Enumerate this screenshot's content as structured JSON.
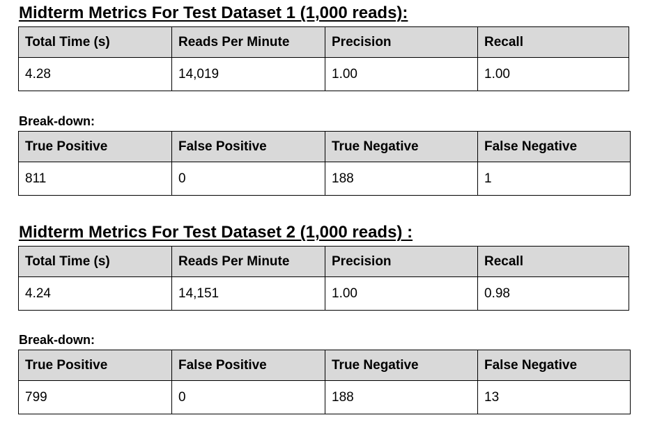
{
  "sections": [
    {
      "title": "Midterm Metrics For Test Dataset 1 (1,000 reads):",
      "metrics": {
        "headers": [
          "Total Time (s)",
          "Reads Per Minute",
          "Precision",
          "Recall"
        ],
        "values": [
          "4.28",
          "14,019",
          "1.00",
          "1.00"
        ]
      },
      "breakdown_label": "Break-down:",
      "breakdown": {
        "headers": [
          "True Positive",
          "False Positive",
          "True Negative",
          "False Negative"
        ],
        "values": [
          "811",
          "0",
          "188",
          "1"
        ]
      }
    },
    {
      "title": "Midterm Metrics For Test Dataset 2 (1,000 reads) :",
      "metrics": {
        "headers": [
          "Total Time (s)",
          "Reads Per Minute",
          "Precision",
          "Recall"
        ],
        "values": [
          "4.24",
          "14,151",
          "1.00",
          "0.98"
        ]
      },
      "breakdown_label": "Break-down:",
      "breakdown": {
        "headers": [
          "True Positive",
          "False Positive",
          "True Negative",
          "False Negative"
        ],
        "values": [
          "799",
          "0",
          "188",
          "13"
        ]
      }
    }
  ],
  "colors": {
    "header_fill": "#d9d9d9",
    "border": "#000000",
    "background": "#ffffff"
  }
}
